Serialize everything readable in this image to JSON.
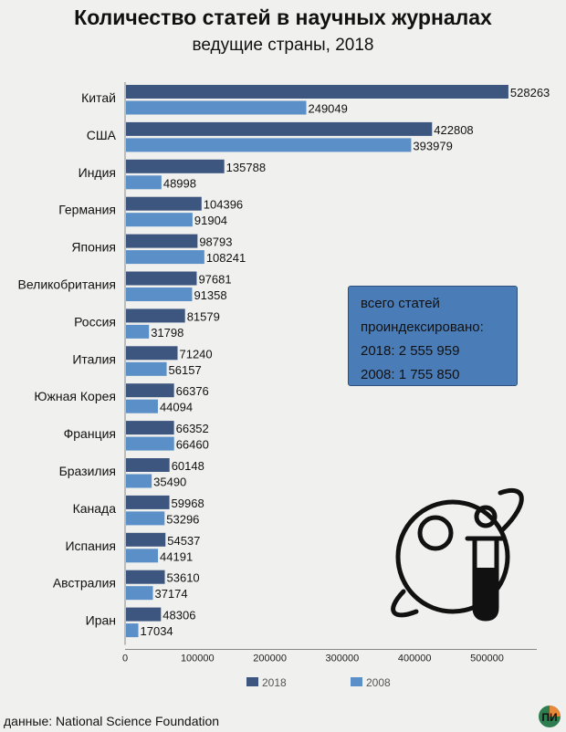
{
  "title": "Количество статей в научных журналах",
  "subtitle": "ведущие страны, 2018",
  "info_box": {
    "line1": "всего статей",
    "line2": "проиндексировано:",
    "line3": "2018: 2 555 959",
    "line4": "2008: 1 755 850"
  },
  "source": "данные: National Science Foundation",
  "logo_text": "П И",
  "colors": {
    "series_2018": "#3d5680",
    "series_2008": "#5b8fc7",
    "background": "#f0f0ee"
  },
  "chart_data": {
    "type": "bar",
    "orientation": "horizontal",
    "title": "Количество статей в научных журналах",
    "subtitle": "ведущие страны, 2018",
    "categories": [
      "Китай",
      "США",
      "Индия",
      "Германия",
      "Япония",
      "Великобритания",
      "Россия",
      "Италия",
      "Южная Корея",
      "Франция",
      "Бразилия",
      "Канада",
      "Испания",
      "Австралия",
      "Иран"
    ],
    "series": [
      {
        "name": "2018",
        "values": [
          528263,
          422808,
          135788,
          104396,
          98793,
          97681,
          81579,
          71240,
          66376,
          66352,
          60148,
          59968,
          54537,
          53610,
          48306
        ]
      },
      {
        "name": "2008",
        "values": [
          249049,
          393979,
          48998,
          91904,
          108241,
          91358,
          31798,
          56157,
          44094,
          66460,
          35490,
          53296,
          44191,
          37174,
          17034
        ]
      }
    ],
    "xlim": [
      0,
      540000
    ],
    "xticks": [
      0,
      100000,
      200000,
      300000,
      400000,
      500000
    ],
    "legend": "bottom",
    "grid": false
  }
}
